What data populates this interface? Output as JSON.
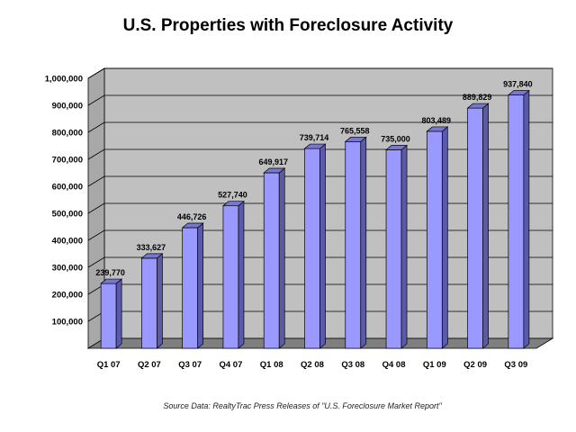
{
  "chart_data": {
    "type": "bar",
    "title": "U.S. Properties with Foreclosure Activity",
    "categories": [
      "Q1 07",
      "Q2 07",
      "Q3 07",
      "Q4 07",
      "Q1 08",
      "Q2 08",
      "Q3 08",
      "Q4 08",
      "Q1 09",
      "Q2 09",
      "Q3 09"
    ],
    "values": [
      239770,
      333627,
      446726,
      527740,
      649917,
      739714,
      765558,
      735000,
      803489,
      889829,
      937840
    ],
    "data_labels": [
      "239,770",
      "333,627",
      "446,726",
      "527,740",
      "649,917",
      "739,714",
      "765,558",
      "735,000",
      "803,489",
      "889,829",
      "937,840"
    ],
    "y_ticks": [
      100000,
      200000,
      300000,
      400000,
      500000,
      600000,
      700000,
      800000,
      900000,
      1000000
    ],
    "y_tick_labels": [
      "100,000",
      "200,000",
      "300,000",
      "400,000",
      "500,000",
      "600,000",
      "700,000",
      "800,000",
      "900,000",
      "1,000,000"
    ],
    "ylim": [
      0,
      1000000
    ],
    "xlabel": "",
    "ylabel": "",
    "grid": true,
    "legend": "none",
    "source_note": "Source Data: RealtyTrac Press Releases of \"U.S. Foreclosure Market Report\"",
    "colors": {
      "bar_front": "#9999ff",
      "bar_side": "#5a5aa8",
      "bar_top": "#7777d0",
      "wall": "#c0c0c0",
      "floor": "#7f7f7f",
      "grid": "#000000"
    }
  }
}
